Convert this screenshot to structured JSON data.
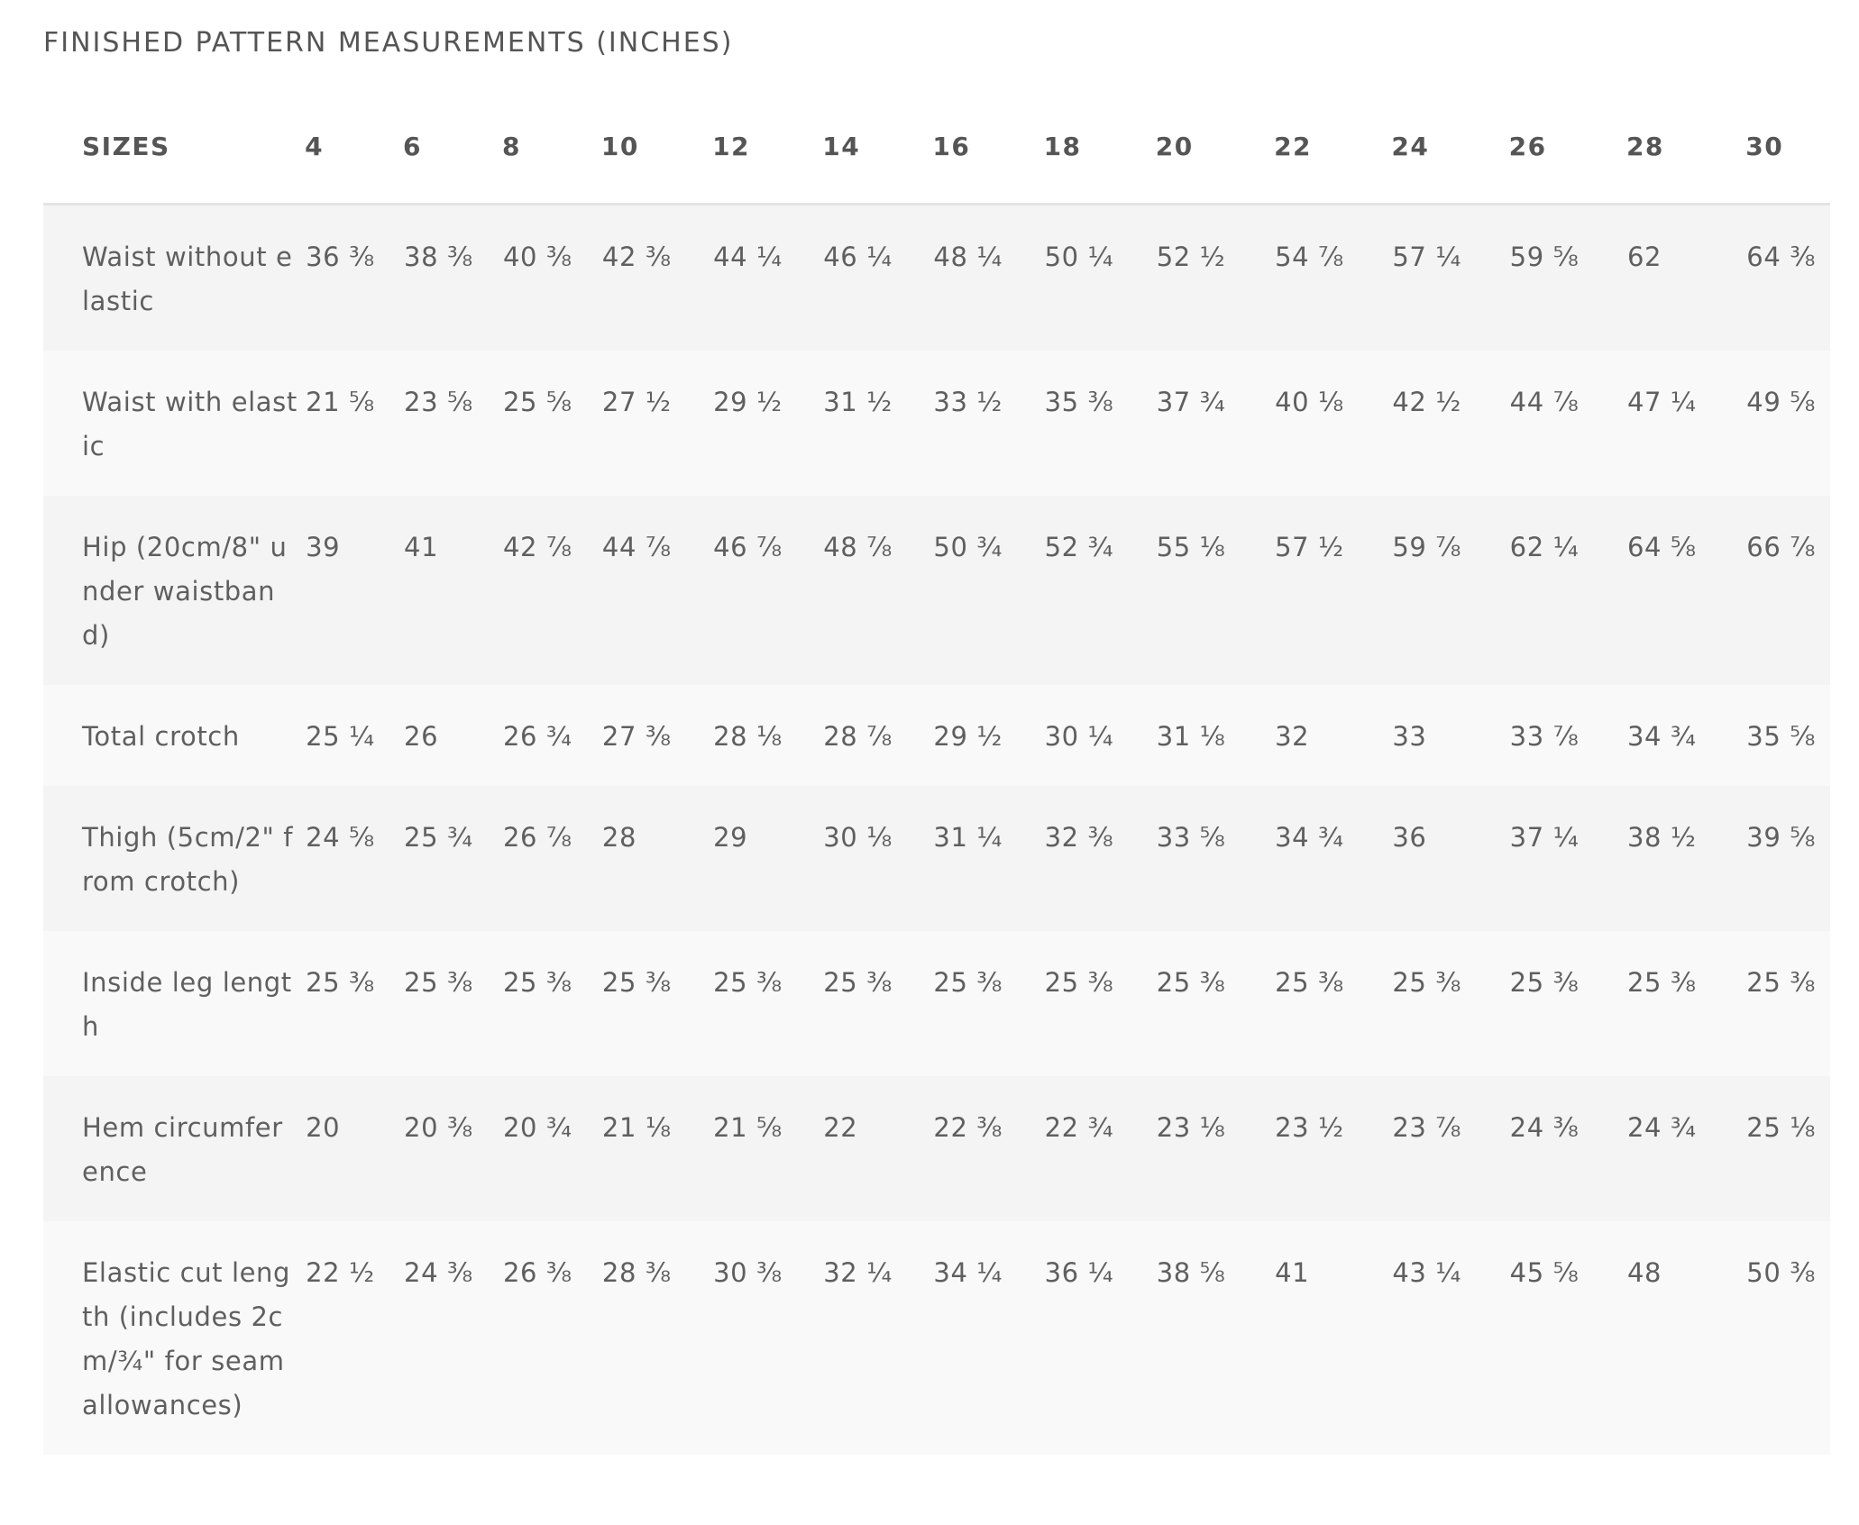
{
  "title": "FINISHED PATTERN MEASUREMENTS (INCHES)",
  "table": {
    "header_label": "SIZES",
    "sizes": [
      "4",
      "6",
      "8",
      "10",
      "12",
      "14",
      "16",
      "18",
      "20",
      "22",
      "24",
      "26",
      "28",
      "30"
    ],
    "rows": [
      {
        "label": "Waist without elastic",
        "values": [
          "36 ⅜",
          "38 ⅜",
          "40 ⅜",
          "42 ⅜",
          "44 ¼",
          "46 ¼",
          "48 ¼",
          "50 ¼",
          "52 ½",
          "54 ⅞",
          "57 ¼",
          "59 ⅝",
          "62",
          "64 ⅜"
        ]
      },
      {
        "label": "Waist with elastic",
        "values": [
          "21 ⅝",
          "23 ⅝",
          "25 ⅝",
          "27 ½",
          "29 ½",
          "31 ½",
          "33 ½",
          "35 ⅜",
          "37 ¾",
          "40 ⅛",
          "42 ½",
          "44 ⅞",
          "47 ¼",
          "49 ⅝"
        ]
      },
      {
        "label": "Hip (20cm/8\" under waistband)",
        "values": [
          "39",
          "41",
          "42 ⅞",
          "44 ⅞",
          "46 ⅞",
          "48 ⅞",
          "50 ¾",
          "52 ¾",
          "55 ⅛",
          "57 ½",
          "59 ⅞",
          "62 ¼",
          "64 ⅝",
          "66 ⅞"
        ]
      },
      {
        "label": "Total crotch",
        "values": [
          "25 ¼",
          "26",
          "26 ¾",
          "27 ⅜",
          "28 ⅛",
          "28 ⅞",
          "29 ½",
          "30 ¼",
          "31 ⅛",
          "32",
          "33",
          "33 ⅞",
          "34 ¾",
          "35 ⅝"
        ]
      },
      {
        "label": "Thigh (5cm/2\" from crotch)",
        "values": [
          "24 ⅝",
          "25 ¾",
          "26 ⅞",
          "28",
          "29",
          "30 ⅛",
          "31 ¼",
          "32 ⅜",
          "33 ⅝",
          "34 ¾",
          "36",
          "37 ¼",
          "38 ½",
          "39 ⅝"
        ]
      },
      {
        "label": "Inside leg length",
        "values": [
          "25 ⅜",
          "25 ⅜",
          "25 ⅜",
          "25 ⅜",
          "25 ⅜",
          "25 ⅜",
          "25 ⅜",
          "25 ⅜",
          "25 ⅜",
          "25 ⅜",
          "25 ⅜",
          "25 ⅜",
          "25 ⅜",
          "25 ⅜"
        ]
      },
      {
        "label": "Hem circumference",
        "values": [
          "20",
          "20 ⅜",
          "20 ¾",
          "21 ⅛",
          "21 ⅝",
          "22",
          "22 ⅜",
          "22 ¾",
          "23 ⅛",
          "23 ½",
          "23 ⅞",
          "24 ⅜",
          "24 ¾",
          "25 ⅛"
        ]
      },
      {
        "label": "Elastic cut length (includes 2cm/¾\" for seam allowances)",
        "values": [
          "22 ½",
          "24 ⅜",
          "26 ⅜",
          "28 ⅜",
          "30 ⅜",
          "32 ¼",
          "34 ¼",
          "36 ¼",
          "38 ⅝",
          "41",
          "43 ¼",
          "45 ⅝",
          "48",
          "50 ⅜"
        ]
      }
    ]
  }
}
